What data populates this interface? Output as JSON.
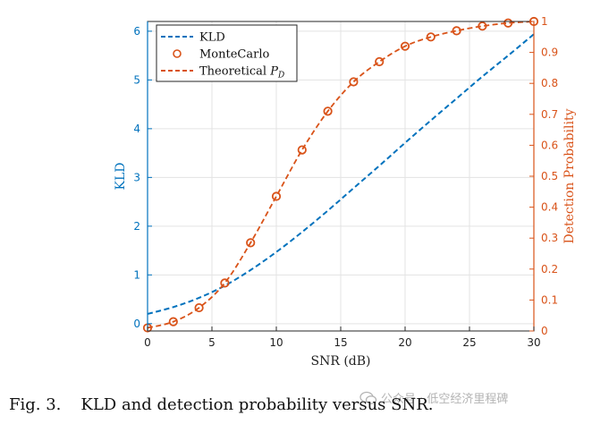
{
  "chart_data": {
    "type": "line",
    "title": "",
    "xlabel": "SNR (dB)",
    "ylabel_left": "KLD",
    "ylabel_right": "Detection Probability",
    "xlim": [
      0,
      30
    ],
    "ylim_left": [
      -0.15,
      6.2
    ],
    "ylim_right": [
      0,
      1
    ],
    "x_ticks": [
      0,
      5,
      10,
      15,
      20,
      25,
      30
    ],
    "y_left_ticks": [
      0,
      1,
      2,
      3,
      4,
      5,
      6
    ],
    "y_right_ticks": [
      0,
      0.1,
      0.2,
      0.3,
      0.4,
      0.5,
      0.6,
      0.7,
      0.8,
      0.9,
      1
    ],
    "grid": true,
    "legend_position": "top-left",
    "series": [
      {
        "name": "KLD",
        "axis": "left",
        "style": "dashed",
        "color": "#0072BD",
        "x": [
          0,
          2,
          4,
          6,
          8,
          10,
          12,
          14,
          16,
          18,
          20,
          22,
          24,
          26,
          28,
          30
        ],
        "y": [
          0.2,
          0.34,
          0.53,
          0.78,
          1.1,
          1.47,
          1.88,
          2.32,
          2.78,
          3.24,
          3.71,
          4.17,
          4.62,
          5.07,
          5.5,
          5.94
        ]
      },
      {
        "name": "MonteCarlo",
        "axis": "right",
        "style": "markers",
        "color": "#D95319",
        "x": [
          0,
          2,
          4,
          6,
          8,
          10,
          12,
          14,
          16,
          18,
          20,
          22,
          24,
          26,
          28,
          30
        ],
        "y": [
          0.01,
          0.03,
          0.075,
          0.155,
          0.285,
          0.435,
          0.585,
          0.71,
          0.805,
          0.87,
          0.92,
          0.95,
          0.97,
          0.985,
          0.995,
          1.0
        ]
      },
      {
        "name": "Theoretical P_D",
        "label_main": "Theoretical ",
        "label_symbol": "P",
        "label_sub": "D",
        "axis": "right",
        "style": "dashed",
        "color": "#D95319",
        "x": [
          0,
          2,
          4,
          6,
          8,
          10,
          12,
          14,
          16,
          18,
          20,
          22,
          24,
          26,
          28,
          30
        ],
        "y": [
          0.01,
          0.03,
          0.075,
          0.155,
          0.285,
          0.435,
          0.585,
          0.71,
          0.805,
          0.87,
          0.92,
          0.95,
          0.97,
          0.985,
          0.995,
          1.0
        ]
      }
    ]
  },
  "caption": {
    "fig_label": "Fig. 3.",
    "text": "KLD and detection probability versus SNR."
  },
  "watermark": {
    "text": "公众号 · 低空经济里程碑"
  },
  "colors": {
    "kld": "#0072BD",
    "pd": "#D95319",
    "grid": "#e3e3e3",
    "axis": "#262626"
  }
}
